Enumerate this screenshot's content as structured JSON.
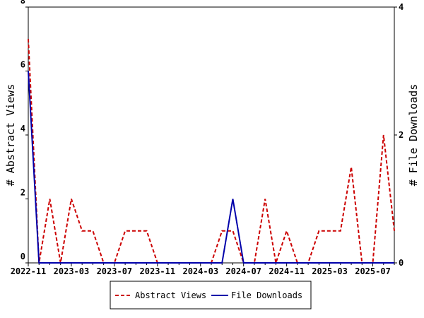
{
  "chart_data": {
    "type": "line",
    "categories": [
      "2022-11",
      null,
      null,
      null,
      "2023-03",
      null,
      null,
      null,
      "2023-07",
      null,
      null,
      null,
      "2023-11",
      null,
      null,
      null,
      "2024-03",
      null,
      null,
      null,
      "2024-07",
      null,
      null,
      null,
      "2024-11",
      null,
      null,
      null,
      "2025-03",
      null,
      null,
      null,
      "2025-07",
      null,
      null
    ],
    "series": [
      {
        "name": "Abstract Views",
        "color": "#cc0000",
        "dash": true,
        "values": [
          7,
          0,
          2,
          0,
          2,
          1,
          1,
          0,
          0,
          1,
          1,
          1,
          0,
          0,
          0,
          0,
          0,
          0,
          1,
          1,
          0,
          0,
          2,
          0,
          1,
          0,
          0,
          1,
          1,
          1,
          3,
          0,
          0,
          4,
          1
        ]
      },
      {
        "name": "File Downloads",
        "color": "#0000aa",
        "dash": false,
        "axis": "y2",
        "values": [
          3,
          0,
          0,
          0,
          0,
          0,
          0,
          0,
          0,
          0,
          0,
          0,
          0,
          0,
          0,
          0,
          0,
          0,
          0,
          1,
          0,
          0,
          0,
          0,
          0,
          0,
          0,
          0,
          0,
          0,
          0,
          0,
          0,
          0,
          0
        ]
      }
    ],
    "ylabel": "# Abstract Views",
    "y2label": "# File Downloads",
    "ylim": [
      0,
      8
    ],
    "yticks": [
      0,
      2,
      4,
      6,
      8
    ],
    "y2lim": [
      0,
      4
    ],
    "y2ticks": [
      0,
      2,
      4
    ]
  }
}
